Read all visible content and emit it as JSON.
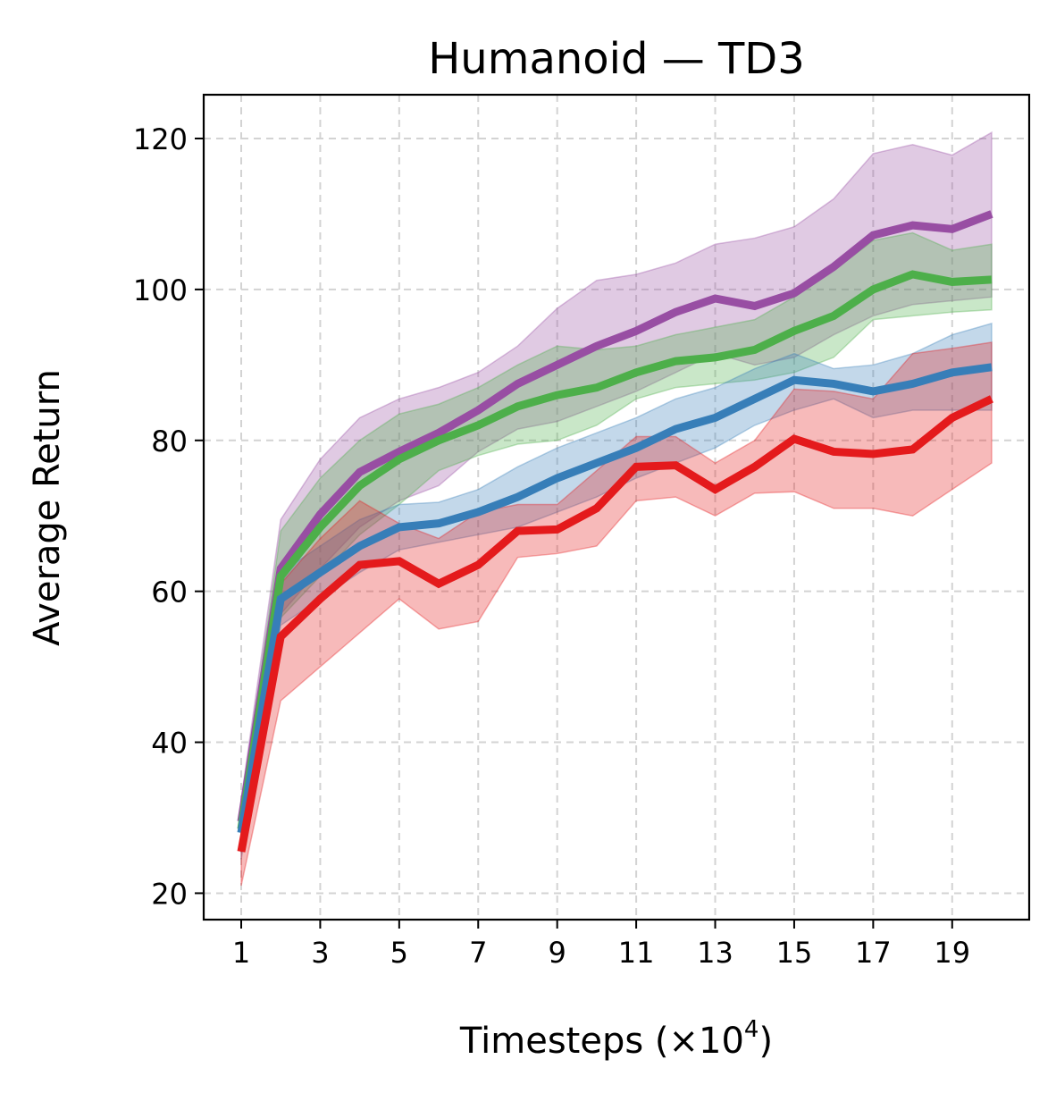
{
  "chart_data": {
    "type": "line",
    "title": "Humanoid — TD3",
    "xlabel": "Timesteps (×10",
    "xlabel_exponent": "4",
    "xlabel_suffix": ")",
    "ylabel": "Average Return",
    "xlim": [
      0.05,
      20.95
    ],
    "ylim": [
      16.5,
      125.8
    ],
    "xticks": [
      1,
      3,
      5,
      7,
      9,
      11,
      13,
      15,
      17,
      19
    ],
    "yticks": [
      20,
      40,
      60,
      80,
      100,
      120
    ],
    "grid": true,
    "x": [
      1,
      2,
      3,
      4,
      5,
      6,
      7,
      8,
      9,
      10,
      11,
      12,
      13,
      14,
      15,
      16,
      17,
      18,
      19,
      20
    ],
    "series": [
      {
        "name": "purple",
        "color": "#984ea3",
        "values": [
          29.5,
          63.0,
          70.2,
          75.8,
          78.5,
          81.0,
          84.0,
          87.5,
          90.0,
          92.5,
          94.5,
          97.0,
          98.8,
          97.8,
          99.5,
          103.0,
          107.2,
          108.5,
          108.0,
          110.0
        ],
        "lower": [
          25.5,
          57.0,
          63.0,
          68.5,
          72.0,
          74.0,
          78.5,
          81.5,
          82.5,
          84.5,
          86.5,
          89.0,
          91.5,
          90.0,
          91.0,
          94.0,
          96.5,
          98.0,
          98.5,
          99.0
        ],
        "upper": [
          32.5,
          69.5,
          77.5,
          83.0,
          85.5,
          87.0,
          89.0,
          92.5,
          97.5,
          101.2,
          102.0,
          103.5,
          106.0,
          106.8,
          108.3,
          112.0,
          118.0,
          119.2,
          117.8,
          120.8
        ]
      },
      {
        "name": "green",
        "color": "#4daf4a",
        "values": [
          28.5,
          62.0,
          68.5,
          74.0,
          77.5,
          80.0,
          82.0,
          84.5,
          86.0,
          87.0,
          89.0,
          90.5,
          91.0,
          92.0,
          94.5,
          96.5,
          100.0,
          102.0,
          101.0,
          101.3
        ],
        "lower": [
          25.5,
          56.5,
          62.0,
          67.5,
          71.5,
          76.0,
          78.0,
          79.5,
          80.0,
          82.0,
          85.5,
          87.0,
          87.5,
          88.0,
          89.0,
          91.0,
          96.0,
          96.5,
          97.0,
          97.3
        ],
        "upper": [
          31.0,
          68.0,
          75.0,
          80.0,
          83.5,
          84.8,
          87.0,
          90.0,
          92.5,
          92.0,
          92.5,
          94.0,
          95.0,
          96.0,
          99.0,
          102.5,
          106.5,
          107.5,
          105.2,
          106.0
        ]
      },
      {
        "name": "blue",
        "color": "#377eb8",
        "values": [
          28.0,
          59.0,
          62.5,
          66.0,
          68.5,
          69.0,
          70.5,
          72.5,
          75.0,
          77.0,
          79.0,
          81.5,
          83.0,
          85.5,
          88.0,
          87.5,
          86.5,
          87.5,
          89.0,
          89.7
        ],
        "lower": [
          24.5,
          55.5,
          59.0,
          62.5,
          65.5,
          66.5,
          67.5,
          68.5,
          70.5,
          72.5,
          75.0,
          77.0,
          79.0,
          82.0,
          84.0,
          85.5,
          83.0,
          84.0,
          84.0,
          84.0
        ],
        "upper": [
          31.5,
          62.5,
          66.0,
          69.5,
          71.5,
          71.8,
          73.5,
          76.5,
          79.0,
          81.0,
          83.0,
          85.5,
          87.0,
          89.5,
          91.5,
          89.5,
          90.0,
          91.5,
          94.0,
          95.5
        ]
      },
      {
        "name": "red",
        "color": "#e41a1c",
        "values": [
          25.5,
          54.0,
          59.0,
          63.5,
          64.0,
          61.0,
          63.5,
          68.0,
          68.2,
          71.0,
          76.5,
          76.7,
          73.5,
          76.5,
          80.2,
          78.5,
          78.2,
          78.8,
          83.0,
          85.5
        ],
        "lower": [
          21.0,
          45.5,
          50.0,
          54.5,
          59.0,
          55.0,
          56.0,
          64.5,
          65.0,
          66.0,
          72.0,
          72.5,
          70.0,
          73.0,
          73.2,
          71.0,
          71.0,
          70.0,
          73.5,
          77.0
        ],
        "upper": [
          29.5,
          61.0,
          67.0,
          72.0,
          69.0,
          67.0,
          70.5,
          71.5,
          71.5,
          76.0,
          80.5,
          80.5,
          77.0,
          80.0,
          86.8,
          86.5,
          85.5,
          91.5,
          92.2,
          93.0
        ]
      }
    ]
  }
}
